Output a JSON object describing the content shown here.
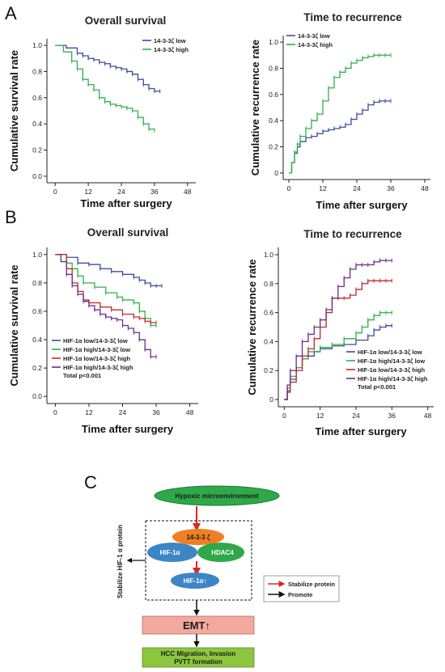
{
  "panels": {
    "a": "A",
    "b": "B",
    "c": "C"
  },
  "chart_data": [
    {
      "type": "line",
      "title": "Overall survival",
      "xlabel": "Time after surgery",
      "ylabel": "Cumulative survival rate",
      "xlim": [
        -3,
        51
      ],
      "ylim": [
        -0.05,
        1.05
      ],
      "xticks": [
        "0",
        "12",
        "24",
        "36",
        "48"
      ],
      "yticks": [
        "0.0",
        "0.2",
        "0.4",
        "0.6",
        "0.8",
        "1.0"
      ],
      "legend": "top-right",
      "series": [
        {
          "name": "14-3-3ζ low",
          "color": "#3f4c9e",
          "x": [
            0,
            4,
            8,
            10,
            12,
            14,
            16,
            18,
            20,
            22,
            24,
            26,
            28,
            30,
            32,
            34,
            36,
            38
          ],
          "y": [
            1.0,
            0.98,
            0.94,
            0.92,
            0.9,
            0.89,
            0.87,
            0.86,
            0.84,
            0.83,
            0.82,
            0.8,
            0.78,
            0.74,
            0.7,
            0.67,
            0.65,
            0.65
          ]
        },
        {
          "name": "14-3-3ζ high",
          "color": "#2fb14a",
          "x": [
            0,
            3,
            6,
            8,
            10,
            12,
            14,
            16,
            18,
            20,
            22,
            24,
            26,
            28,
            30,
            32,
            34,
            36
          ],
          "y": [
            1.0,
            0.95,
            0.88,
            0.82,
            0.74,
            0.7,
            0.66,
            0.6,
            0.57,
            0.55,
            0.54,
            0.53,
            0.52,
            0.5,
            0.45,
            0.4,
            0.36,
            0.35
          ]
        }
      ]
    },
    {
      "type": "line",
      "title": "Time to recurrence",
      "xlabel": "Time after surgery",
      "ylabel": "Cumulative recurrence rate",
      "xlim": [
        -2,
        50
      ],
      "ylim": [
        -0.05,
        1.05
      ],
      "xticks": [
        "0",
        "12",
        "24",
        "36",
        "48"
      ],
      "yticks": [
        "0",
        "0.2",
        "0.4",
        "0.6",
        "0.8",
        "1.0"
      ],
      "legend": "top-left",
      "series": [
        {
          "name": "14-3-3ζ low",
          "color": "#3f4c9e",
          "x": [
            0,
            1,
            2,
            3,
            4,
            6,
            8,
            10,
            12,
            14,
            16,
            18,
            20,
            22,
            24,
            26,
            28,
            30,
            32,
            34,
            36
          ],
          "y": [
            0,
            0.08,
            0.15,
            0.2,
            0.24,
            0.27,
            0.28,
            0.3,
            0.32,
            0.33,
            0.34,
            0.35,
            0.37,
            0.41,
            0.45,
            0.48,
            0.52,
            0.54,
            0.55,
            0.55,
            0.55
          ]
        },
        {
          "name": "14-3-3ζ high",
          "color": "#2fb14a",
          "x": [
            0,
            1,
            2,
            3,
            4,
            6,
            8,
            10,
            12,
            14,
            16,
            18,
            20,
            22,
            24,
            26,
            28,
            30,
            32,
            34,
            36
          ],
          "y": [
            0,
            0.08,
            0.16,
            0.22,
            0.28,
            0.34,
            0.4,
            0.45,
            0.55,
            0.65,
            0.73,
            0.77,
            0.8,
            0.84,
            0.86,
            0.88,
            0.89,
            0.9,
            0.9,
            0.9,
            0.9
          ]
        }
      ]
    },
    {
      "type": "line",
      "title": "Overall survival",
      "xlabel": "Time after surgery",
      "ylabel": "Cumulative survival rate",
      "xlim": [
        -3,
        51
      ],
      "ylim": [
        -0.05,
        1.05
      ],
      "xticks": [
        "0",
        "12",
        "24",
        "36",
        "48"
      ],
      "yticks": [
        "0.0",
        "0.2",
        "0.4",
        "0.6",
        "0.8",
        "1.0"
      ],
      "legend": "bottom-left",
      "annotation": "Total p<0.001",
      "series": [
        {
          "name": "HIF-1α low/14-3-3ζ low",
          "color": "#3f4c9e",
          "x": [
            0,
            4,
            8,
            12,
            16,
            20,
            24,
            28,
            30,
            32,
            34,
            36,
            38
          ],
          "y": [
            1.0,
            0.98,
            0.94,
            0.93,
            0.9,
            0.88,
            0.86,
            0.84,
            0.82,
            0.8,
            0.78,
            0.78,
            0.78
          ]
        },
        {
          "name": "HIF-1α high/14-3-3ζ low",
          "color": "#2fb14a",
          "x": [
            0,
            4,
            6,
            8,
            10,
            14,
            18,
            22,
            24,
            28,
            30,
            32,
            34,
            36
          ],
          "y": [
            1.0,
            0.94,
            0.9,
            0.85,
            0.8,
            0.77,
            0.73,
            0.7,
            0.68,
            0.66,
            0.6,
            0.55,
            0.5,
            0.5
          ]
        },
        {
          "name": "HIF-1α low/14-3-3ζ high",
          "color": "#c62a2a",
          "x": [
            0,
            4,
            6,
            8,
            10,
            12,
            16,
            20,
            24,
            28,
            30,
            32,
            34,
            36
          ],
          "y": [
            1.0,
            0.9,
            0.8,
            0.74,
            0.68,
            0.66,
            0.63,
            0.61,
            0.58,
            0.56,
            0.55,
            0.53,
            0.52,
            0.52
          ]
        },
        {
          "name": "HIF-1α high/14-3-3ζ high",
          "color": "#6b2d87",
          "x": [
            0,
            2,
            4,
            6,
            8,
            10,
            12,
            14,
            16,
            18,
            20,
            22,
            24,
            26,
            28,
            30,
            32,
            34,
            36
          ],
          "y": [
            1.0,
            0.95,
            0.86,
            0.78,
            0.72,
            0.67,
            0.64,
            0.61,
            0.58,
            0.56,
            0.55,
            0.54,
            0.5,
            0.48,
            0.45,
            0.4,
            0.33,
            0.28,
            0.28
          ]
        }
      ]
    },
    {
      "type": "line",
      "title": "Time to recurrence",
      "xlabel": "Time after surgery",
      "ylabel": "Cumulative recurrence rate",
      "xlim": [
        -2,
        50
      ],
      "ylim": [
        -0.05,
        1.05
      ],
      "xticks": [
        "0",
        "12",
        "24",
        "36",
        "48"
      ],
      "yticks": [
        "0",
        "0.2",
        "0.4",
        "0.6",
        "0.8",
        "1.0"
      ],
      "legend": "bottom-right",
      "annotation": "Total p<0.001",
      "series": [
        {
          "name": "HIF-1α low/14-3-3ζ low",
          "color": "#3f4c9e",
          "x": [
            0,
            1,
            2,
            4,
            6,
            8,
            10,
            12,
            16,
            20,
            24,
            28,
            30,
            32,
            34,
            36
          ],
          "y": [
            0,
            0.06,
            0.14,
            0.22,
            0.28,
            0.3,
            0.33,
            0.35,
            0.37,
            0.38,
            0.41,
            0.44,
            0.48,
            0.5,
            0.51,
            0.51
          ]
        },
        {
          "name": "HIF-1α high/14-3-3ζ low",
          "color": "#2fb14a",
          "x": [
            0,
            1,
            2,
            4,
            6,
            8,
            12,
            16,
            20,
            24,
            26,
            28,
            30,
            32,
            34,
            36
          ],
          "y": [
            0,
            0.08,
            0.16,
            0.22,
            0.28,
            0.33,
            0.36,
            0.38,
            0.42,
            0.46,
            0.5,
            0.55,
            0.58,
            0.6,
            0.6,
            0.6
          ]
        },
        {
          "name": "HIF-1α low/14-3-3ζ high",
          "color": "#c62a2a",
          "x": [
            0,
            1,
            2,
            4,
            6,
            8,
            10,
            12,
            14,
            16,
            18,
            20,
            22,
            24,
            26,
            28,
            30,
            32,
            34,
            36
          ],
          "y": [
            0,
            0.05,
            0.12,
            0.2,
            0.3,
            0.35,
            0.42,
            0.5,
            0.6,
            0.7,
            0.7,
            0.7,
            0.72,
            0.76,
            0.8,
            0.82,
            0.82,
            0.82,
            0.82,
            0.82
          ]
        },
        {
          "name": "HIF-1α high/14-3-3ζ high",
          "color": "#6b2d87",
          "x": [
            0,
            1,
            2,
            4,
            6,
            8,
            10,
            12,
            14,
            16,
            18,
            20,
            22,
            24,
            26,
            28,
            30,
            32,
            34,
            36
          ],
          "y": [
            0,
            0.1,
            0.2,
            0.3,
            0.4,
            0.45,
            0.5,
            0.55,
            0.62,
            0.7,
            0.78,
            0.84,
            0.9,
            0.93,
            0.93,
            0.93,
            0.95,
            0.96,
            0.96,
            0.96
          ]
        }
      ]
    }
  ],
  "diagram": {
    "hypoxic": "Hypoxic microenvironment",
    "node_1433": "14-3-3 ζ",
    "node_hif": "HIF-1α",
    "node_hdac4": "HDAC4",
    "node_hif_up": "HIF-1α↑",
    "side_label": "Stabilize HIF-1 α protein",
    "emt": "EMT↑",
    "hcc_line1": "HCC Migration, Invasion",
    "hcc_line2": "PVTT formation",
    "legend_red": "Stabilize protein",
    "legend_black": "Promote",
    "colors": {
      "red_arrow": "#e0261e",
      "green_node": "#2fa84a",
      "blue_node": "#3d86c6",
      "orange_node": "#f07f24",
      "emt_fill": "#f4a99e",
      "hcc_fill": "#8cc63f"
    }
  }
}
